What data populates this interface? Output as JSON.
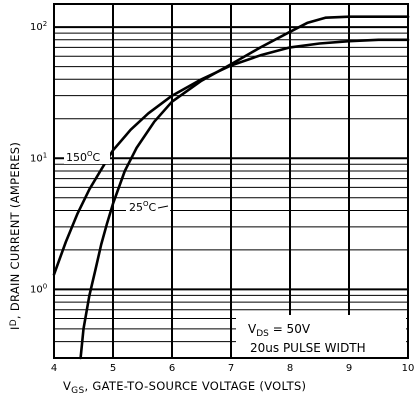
{
  "chart_data": {
    "type": "line",
    "title": "",
    "xlabel_main": "V",
    "xlabel_sub": "GS",
    "xlabel_rest": ", GATE-TO-SOURCE VOLTAGE (VOLTS)",
    "ylabel_main": "I",
    "ylabel_sub": "D",
    "ylabel_rest": ", DRAIN CURRENT (AMPERES)",
    "xlim": [
      4,
      10
    ],
    "ylim": [
      0.3,
      150
    ],
    "y_scale": "log",
    "grid": true,
    "x_ticks": [
      "4",
      "5",
      "6",
      "7",
      "8",
      "9",
      "10"
    ],
    "y_ticks": [
      {
        "base": "10",
        "exp": "0"
      },
      {
        "base": "10",
        "exp": "1"
      },
      {
        "base": "10",
        "exp": "2"
      }
    ],
    "series": [
      {
        "name": "150°C",
        "x": [
          4.0,
          4.2,
          4.4,
          4.6,
          4.8,
          5.0,
          5.3,
          5.6,
          6.0,
          6.5,
          7.0,
          7.5,
          8.0,
          8.5,
          9.0,
          9.5,
          10.0
        ],
        "y": [
          1.3,
          2.3,
          3.8,
          5.8,
          8.2,
          11.5,
          16.5,
          22.0,
          30.0,
          40.0,
          51.0,
          61.0,
          70.0,
          75.0,
          78.0,
          80.0,
          80.0
        ]
      },
      {
        "name": "25°C",
        "x": [
          4.45,
          4.5,
          4.6,
          4.7,
          4.8,
          4.9,
          5.0,
          5.2,
          5.4,
          5.7,
          6.0,
          6.5,
          7.0,
          7.5,
          8.0,
          8.3,
          8.6,
          9.0,
          9.5,
          10.0
        ],
        "y": [
          0.3,
          0.5,
          0.9,
          1.4,
          2.2,
          3.2,
          4.5,
          8.0,
          12.0,
          19.0,
          27.0,
          39.0,
          52.0,
          70.0,
          92.0,
          108.0,
          118.0,
          120.0,
          120.0,
          120.0
        ]
      }
    ],
    "series_labels": [
      {
        "text": "150",
        "sup": "O",
        "unit": "C"
      },
      {
        "text": "25",
        "sup": "O",
        "unit": "C"
      }
    ],
    "annotation": {
      "line1_main": "V",
      "line1_sub": "DS",
      "line1_rest": " = 50V",
      "line2": "20us PULSE WIDTH"
    }
  }
}
